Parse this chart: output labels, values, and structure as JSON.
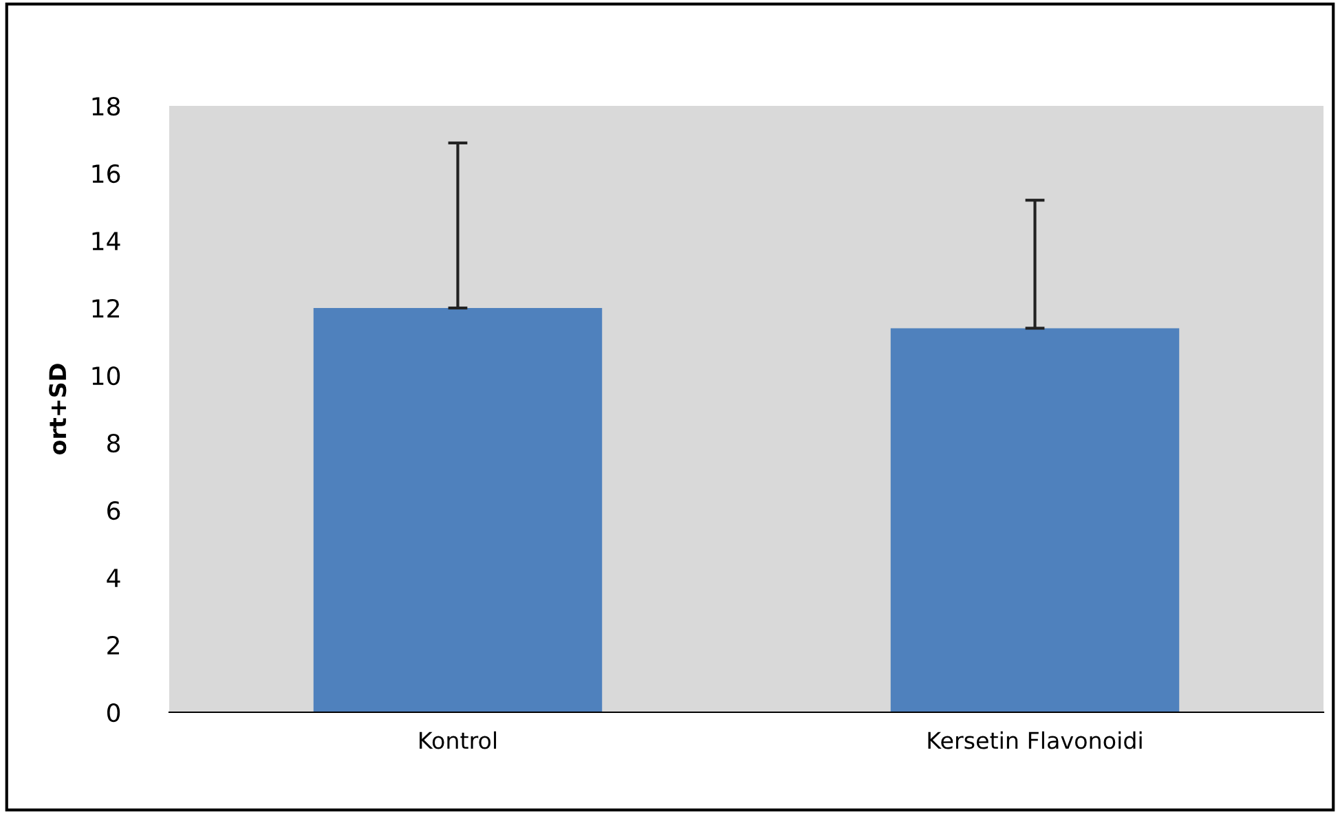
{
  "chart_data": {
    "type": "bar",
    "ylabel": "ort+SD",
    "categories": [
      "Kontrol",
      "Kersetin Flavonoidi"
    ],
    "values": [
      12.0,
      11.4
    ],
    "errors": [
      [
        12.0,
        16.9
      ],
      [
        11.4,
        15.2
      ]
    ],
    "color": "#4f81bd",
    "ylim": [
      0,
      18
    ],
    "yticks": [
      0,
      2,
      4,
      6,
      8,
      10,
      12,
      14,
      16,
      18
    ],
    "grid": false
  }
}
